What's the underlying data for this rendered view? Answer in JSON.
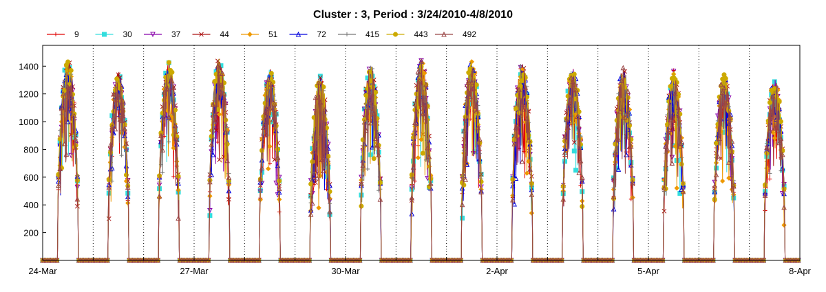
{
  "chart_data": {
    "type": "line",
    "title": "Cluster : 3, Period : 3/24/2010-4/8/2010",
    "xlabel": "",
    "ylabel": "",
    "x_range": [
      "2010-03-24",
      "2010-04-08"
    ],
    "x_ticks": [
      "24-Mar",
      "27-Mar",
      "30-Mar",
      "2-Apr",
      "5-Apr",
      "8-Apr"
    ],
    "y_ticks": [
      200,
      400,
      600,
      800,
      1000,
      1200,
      1400
    ],
    "ylim": [
      0,
      1550
    ],
    "grid": "vertical dotted at day boundaries",
    "legend_position": "top-left, horizontal",
    "daily_profile": [
      {
        "date": "2010-03-24",
        "peak": 1450
      },
      {
        "date": "2010-03-25",
        "peak": 1360
      },
      {
        "date": "2010-03-26",
        "peak": 1430
      },
      {
        "date": "2010-03-27",
        "peak": 1460
      },
      {
        "date": "2010-03-28",
        "peak": 1380
      },
      {
        "date": "2010-03-29",
        "peak": 1330
      },
      {
        "date": "2010-03-30",
        "peak": 1400
      },
      {
        "date": "2010-03-31",
        "peak": 1440
      },
      {
        "date": "2010-04-01",
        "peak": 1440
      },
      {
        "date": "2010-04-02",
        "peak": 1420
      },
      {
        "date": "2010-04-03",
        "peak": 1390
      },
      {
        "date": "2010-04-04",
        "peak": 1390
      },
      {
        "date": "2010-04-05",
        "peak": 1370
      },
      {
        "date": "2010-04-06",
        "peak": 1340
      },
      {
        "date": "2010-04-07",
        "peak": 1310
      }
    ],
    "series": [
      {
        "name": "9",
        "color": "#e00000",
        "marker": "plus"
      },
      {
        "name": "30",
        "color": "#33dddd",
        "marker": "square"
      },
      {
        "name": "37",
        "color": "#8800aa",
        "marker": "triangle-down"
      },
      {
        "name": "44",
        "color": "#aa1111",
        "marker": "x"
      },
      {
        "name": "51",
        "color": "#ee9900",
        "marker": "diamond"
      },
      {
        "name": "72",
        "color": "#0000dd",
        "marker": "triangle-up"
      },
      {
        "name": "415",
        "color": "#777777",
        "marker": "plus"
      },
      {
        "name": "443",
        "color": "#ccaa00",
        "marker": "circle"
      },
      {
        "name": "492",
        "color": "#994444",
        "marker": "triangle-up"
      }
    ]
  }
}
